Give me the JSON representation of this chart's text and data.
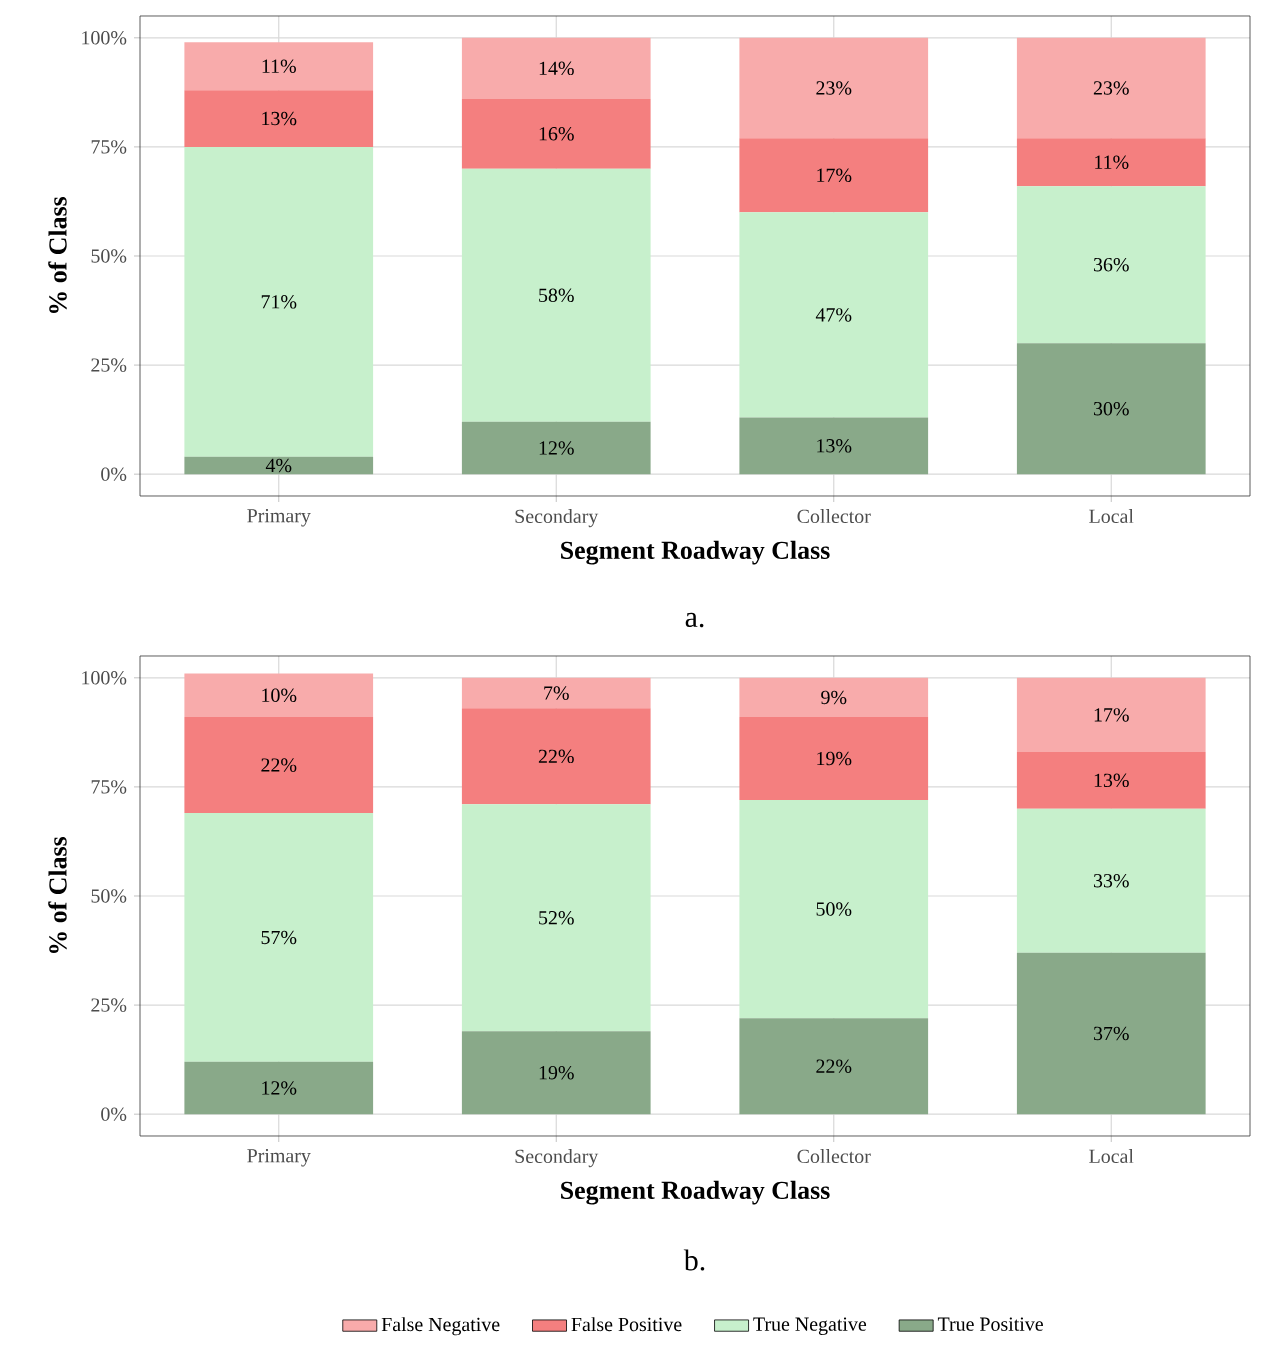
{
  "chart_data": [
    {
      "type": "bar",
      "stacked": true,
      "categories": [
        "Primary",
        "Secondary",
        "Collector",
        "Local"
      ],
      "xlabel": "Segment Roadway Class",
      "ylabel": "% of Class",
      "annotations": [
        "a."
      ],
      "ylim": [
        -5,
        105
      ],
      "yticks": [
        {
          "value": 0,
          "label": "0%"
        },
        {
          "value": 25,
          "label": "25%"
        },
        {
          "value": 50,
          "label": "50%"
        },
        {
          "value": 75,
          "label": "75%"
        },
        {
          "value": 100,
          "label": "100%"
        }
      ],
      "grid": true,
      "series": [
        {
          "color": "#89a989",
          "values": [
            4,
            12,
            13,
            30
          ],
          "value_labels": [
            "4%",
            "12%",
            "13%",
            "30%"
          ]
        },
        {
          "color": "#c7f0cc",
          "values": [
            71,
            58,
            47,
            36
          ],
          "value_labels": [
            "71%",
            "58%",
            "47%",
            "36%"
          ]
        },
        {
          "color": "#f47f7f",
          "values": [
            13,
            16,
            17,
            11
          ],
          "value_labels": [
            "13%",
            "16%",
            "17%",
            "11%"
          ]
        },
        {
          "color": "#f8abab",
          "values": [
            11,
            14,
            23,
            23
          ],
          "value_labels": [
            "11%",
            "14%",
            "23%",
            "23%"
          ]
        }
      ]
    },
    {
      "type": "bar",
      "stacked": true,
      "categories": [
        "Primary",
        "Secondary",
        "Collector",
        "Local"
      ],
      "xlabel": "Segment Roadway Class",
      "ylabel": "% of Class",
      "annotations": [
        "b."
      ],
      "ylim": [
        -5,
        105
      ],
      "yticks": [
        {
          "value": 0,
          "label": "0%"
        },
        {
          "value": 25,
          "label": "25%"
        },
        {
          "value": 50,
          "label": "50%"
        },
        {
          "value": 75,
          "label": "75%"
        },
        {
          "value": 100,
          "label": "100%"
        }
      ],
      "grid": true,
      "legend": "bottom",
      "series": [
        {
          "name": "True Positive",
          "color": "#89a989",
          "values": [
            12,
            19,
            22,
            37
          ],
          "value_labels": [
            "12%",
            "19%",
            "22%",
            "37%"
          ]
        },
        {
          "name": "True Negative",
          "color": "#c7f0cc",
          "values": [
            57,
            52,
            50,
            33
          ],
          "value_labels": [
            "57%",
            "52%",
            "50%",
            "33%"
          ]
        },
        {
          "name": "False Positive",
          "color": "#f47f7f",
          "values": [
            22,
            22,
            19,
            13
          ],
          "value_labels": [
            "22%",
            "22%",
            "19%",
            "13%"
          ]
        },
        {
          "name": "False Negative",
          "color": "#f8abab",
          "values": [
            10,
            7,
            9,
            17
          ],
          "value_labels": [
            "10%",
            "7%",
            "9%",
            "17%"
          ]
        }
      ]
    }
  ]
}
